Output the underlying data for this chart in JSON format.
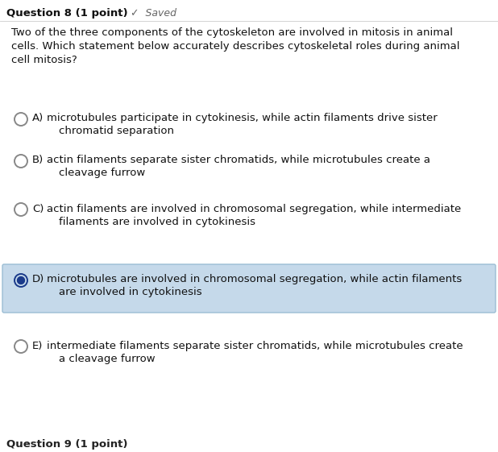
{
  "title": "Question 8 (1 point)",
  "saved_text": "✓  Saved",
  "question": "Two of the three components of the cytoskeleton are involved in mitosis in animal\ncells. Which statement below accurately describes cytoskeletal roles during animal\ncell mitosis?",
  "options": [
    {
      "letter": "A)",
      "line1": "microtubules participate in cytokinesis, while actin filaments drive sister",
      "line2": "chromatid separation",
      "selected": false,
      "highlighted": false
    },
    {
      "letter": "B)",
      "line1": "actin filaments separate sister chromatids, while microtubules create a",
      "line2": "cleavage furrow",
      "selected": false,
      "highlighted": false
    },
    {
      "letter": "C)",
      "line1": "actin filaments are involved in chromosomal segregation, while intermediate",
      "line2": "filaments are involved in cytokinesis",
      "selected": false,
      "highlighted": false
    },
    {
      "letter": "D)",
      "line1": "microtubules are involved in chromosomal segregation, while actin filaments",
      "line2": "are involved in cytokinesis",
      "selected": true,
      "highlighted": true
    },
    {
      "letter": "E)",
      "line1": "intermediate filaments separate sister chromatids, while microtubules create",
      "line2": "a cleavage furrow",
      "selected": false,
      "highlighted": false
    }
  ],
  "footer": "Question 9 (1 point)",
  "bg_color": "#f0f0f0",
  "white_bg": "#ffffff",
  "highlight_color": "#c5d9ea",
  "highlight_border": "#9bbdd4",
  "radio_empty_color": "#888888",
  "radio_selected_fill": "#1a3a8a",
  "radio_selected_edge": "#1a3a8a",
  "title_color": "#111111",
  "question_color": "#111111",
  "option_color": "#111111",
  "saved_color": "#666666",
  "footer_color": "#222222",
  "title_fontsize": 9.5,
  "question_fontsize": 9.5,
  "option_fontsize": 9.5,
  "footer_fontsize": 9.5
}
